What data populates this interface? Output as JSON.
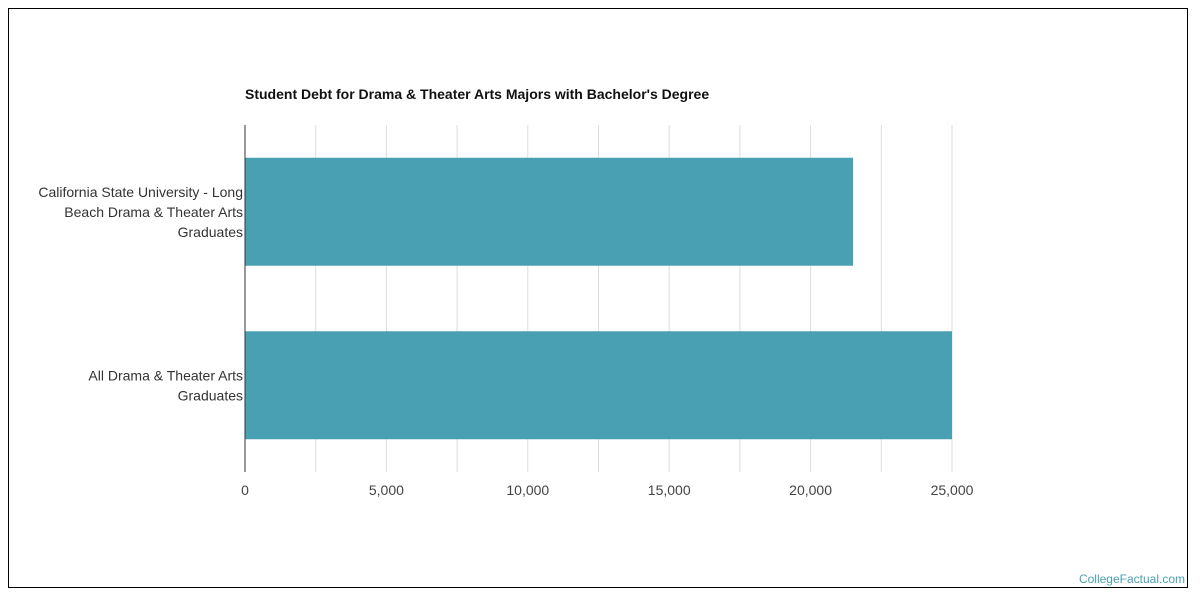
{
  "chart_data": {
    "type": "bar",
    "orientation": "horizontal",
    "title": "Student Debt for Drama & Theater Arts Majors with Bachelor's Degree",
    "categories": [
      [
        "California State University - Long",
        "Beach Drama & Theater Arts",
        "Graduates"
      ],
      [
        "All Drama & Theater Arts",
        "Graduates"
      ]
    ],
    "values": [
      21500,
      25000
    ],
    "xlim": [
      0,
      25000
    ],
    "x_ticks": [
      "0",
      "5,000",
      "10,000",
      "15,000",
      "20,000",
      "25,000"
    ],
    "x_tick_values": [
      0,
      5000,
      10000,
      15000,
      20000,
      25000
    ],
    "grid": true,
    "bar_color": "#4aa0b3",
    "grid_color": "#dddddd"
  },
  "watermark": "CollegeFactual.com"
}
